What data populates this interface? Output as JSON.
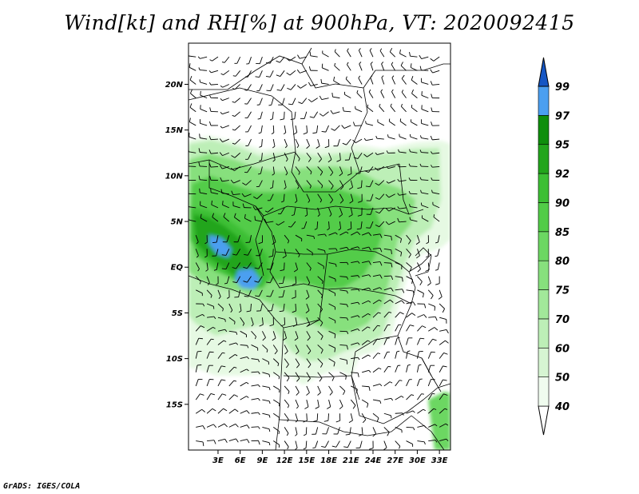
{
  "title": "Wind[kt] and RH[%] at 900hPa, VT: 2020092415",
  "credit": "GrADS: IGES/COLA",
  "map": {
    "lon_range": [
      -1,
      34.5
    ],
    "lat_range": [
      -20,
      24.5
    ],
    "lat_ticks": [
      {
        "value": 20,
        "label": "20N"
      },
      {
        "value": 15,
        "label": "15N"
      },
      {
        "value": 10,
        "label": "10N"
      },
      {
        "value": 5,
        "label": "5N"
      },
      {
        "value": 0,
        "label": "EQ"
      },
      {
        "value": -5,
        "label": "5S"
      },
      {
        "value": -10,
        "label": "10S"
      },
      {
        "value": -15,
        "label": "15S"
      }
    ],
    "lon_ticks": [
      {
        "value": 3,
        "label": "3E"
      },
      {
        "value": 6,
        "label": "6E"
      },
      {
        "value": 9,
        "label": "9E"
      },
      {
        "value": 12,
        "label": "12E"
      },
      {
        "value": 15,
        "label": "15E"
      },
      {
        "value": 18,
        "label": "18E"
      },
      {
        "value": 21,
        "label": "21E"
      },
      {
        "value": 24,
        "label": "24E"
      },
      {
        "value": 27,
        "label": "27E"
      },
      {
        "value": 30,
        "label": "30E"
      },
      {
        "value": 33,
        "label": "33E"
      }
    ]
  },
  "colorbar": {
    "levels": [
      "40",
      "50",
      "60",
      "70",
      "75",
      "80",
      "85",
      "90",
      "92",
      "95",
      "97",
      "99"
    ],
    "colors": [
      "#f0fcef",
      "#d6f5d2",
      "#bdefb7",
      "#a2e89a",
      "#87e07d",
      "#6cd762",
      "#52cc48",
      "#3cbf34",
      "#23a51c",
      "#0f8e0c",
      "#4b9ff0",
      "#1f6fdc",
      "#1556c4"
    ],
    "low_color": "#ffffff"
  },
  "colors": {
    "boundary": "#000000",
    "barb": "#000000"
  }
}
